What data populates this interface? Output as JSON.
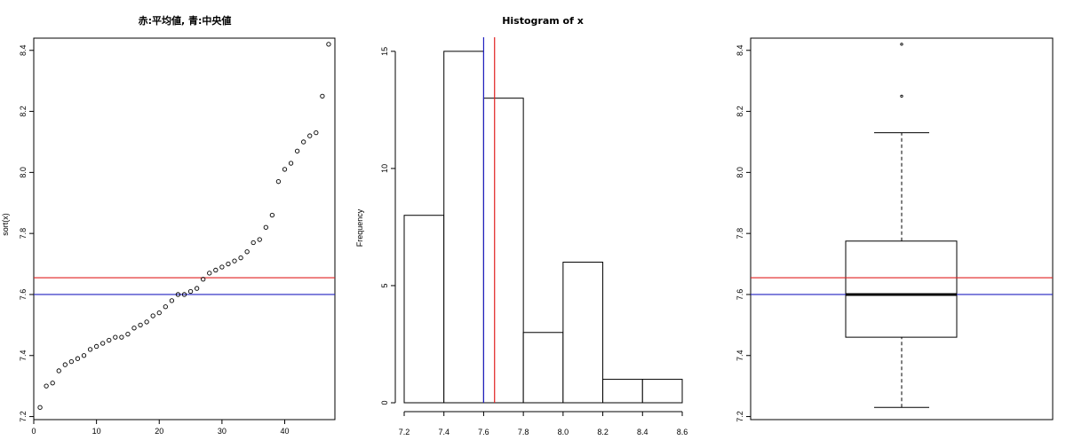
{
  "chart_data": [
    {
      "type": "scatter",
      "title": "赤:平均値, 青:中央値",
      "xlabel": "",
      "ylabel": "sort(x)",
      "xlim": [
        0,
        48
      ],
      "ylim": [
        7.19,
        8.44
      ],
      "xticks": [
        0,
        10,
        20,
        30,
        40
      ],
      "yticks": [
        7.2,
        7.4,
        7.6,
        7.8,
        8.0,
        8.2,
        8.4
      ],
      "x": [
        1,
        2,
        3,
        4,
        5,
        6,
        7,
        8,
        9,
        10,
        11,
        12,
        13,
        14,
        15,
        16,
        17,
        18,
        19,
        20,
        21,
        22,
        23,
        24,
        25,
        26,
        27,
        28,
        29,
        30,
        31,
        32,
        33,
        34,
        35,
        36,
        37,
        38,
        39,
        40,
        41,
        42,
        43,
        44,
        45,
        46,
        47
      ],
      "y": [
        7.23,
        7.3,
        7.31,
        7.35,
        7.37,
        7.38,
        7.39,
        7.4,
        7.42,
        7.43,
        7.44,
        7.45,
        7.46,
        7.46,
        7.47,
        7.49,
        7.5,
        7.51,
        7.53,
        7.54,
        7.56,
        7.58,
        7.6,
        7.6,
        7.61,
        7.62,
        7.65,
        7.67,
        7.68,
        7.69,
        7.7,
        7.71,
        7.72,
        7.74,
        7.77,
        7.78,
        7.82,
        7.86,
        7.97,
        8.01,
        8.03,
        8.07,
        8.1,
        8.12,
        8.13,
        8.25,
        8.42
      ],
      "hlines": [
        {
          "value": 7.655,
          "color": "#e02020"
        },
        {
          "value": 7.6,
          "color": "#2020c0"
        }
      ]
    },
    {
      "type": "bar",
      "title": "Histogram of x",
      "xlabel": "",
      "ylabel": "Frequency",
      "bin_edges": [
        7.2,
        7.4,
        7.6,
        7.8,
        8.0,
        8.2,
        8.4,
        8.6
      ],
      "values": [
        8,
        15,
        13,
        3,
        6,
        1,
        1
      ],
      "xlim": [
        7.2,
        8.6
      ],
      "ylim": [
        0,
        15.6
      ],
      "xticks": [
        7.2,
        7.4,
        7.6,
        7.8,
        8.0,
        8.2,
        8.4,
        8.6
      ],
      "yticks": [
        0,
        5,
        10,
        15
      ],
      "vlines": [
        {
          "value": 7.6,
          "color": "#2020c0"
        },
        {
          "value": 7.655,
          "color": "#e02020"
        }
      ]
    },
    {
      "type": "box",
      "title": "",
      "xlabel": "",
      "ylabel": "",
      "ylim": [
        7.19,
        8.44
      ],
      "yticks": [
        7.2,
        7.4,
        7.6,
        7.8,
        8.0,
        8.2,
        8.4
      ],
      "whisker_low": 7.23,
      "q1": 7.46,
      "median": 7.6,
      "q3": 7.775,
      "whisker_high": 8.13,
      "outliers": [
        8.25,
        8.42
      ],
      "hlines": [
        {
          "value": 7.655,
          "color": "#e02020"
        },
        {
          "value": 7.6,
          "color": "#2020c0"
        }
      ]
    }
  ]
}
